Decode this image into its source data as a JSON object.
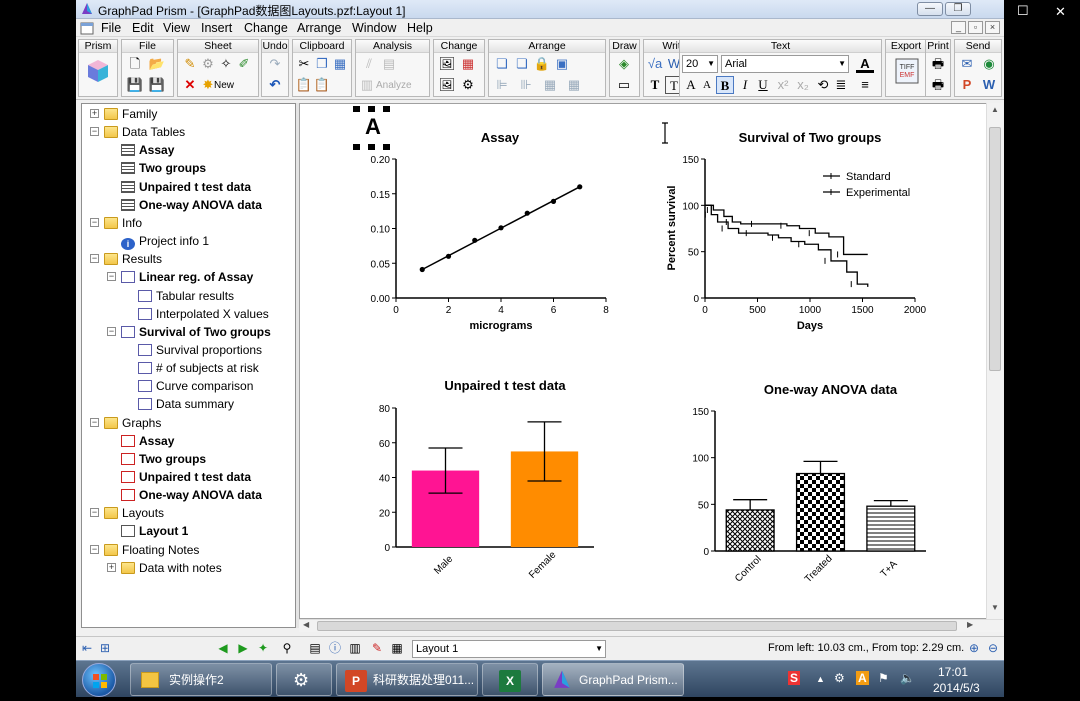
{
  "window": {
    "title": "GraphPad Prism - [GraphPad数据图Layouts.pzf:Layout 1]",
    "minimize_glyph": "—",
    "maximize_glyph": "❐"
  },
  "outer_window_buttons": {
    "minimize": "—",
    "maximize": "☐",
    "close": "✕"
  },
  "menu": [
    "File",
    "Edit",
    "View",
    "Insert",
    "Change",
    "Arrange",
    "Window",
    "Help"
  ],
  "toolbar": {
    "groups": [
      "Prism",
      "File",
      "Sheet",
      "Undo",
      "Clipboard",
      "Analysis",
      "Change",
      "Arrange",
      "Draw",
      "Write",
      "Text",
      "Export",
      "Print",
      "Send"
    ],
    "sheet_new_label": "New",
    "analyze_label": "Analyze",
    "font_size": "20",
    "font_name": "Arial"
  },
  "navigator": [
    {
      "label": "Family",
      "kind": "folder",
      "level": 0,
      "bold": false
    },
    {
      "label": "Data Tables",
      "kind": "folder",
      "level": 0,
      "bold": false
    },
    {
      "label": "Assay",
      "kind": "sheet",
      "level": 1,
      "bold": true
    },
    {
      "label": "Two groups",
      "kind": "sheet",
      "level": 1,
      "bold": true
    },
    {
      "label": "Unpaired t test data",
      "kind": "sheet",
      "level": 1,
      "bold": true
    },
    {
      "label": "One-way ANOVA data",
      "kind": "sheet",
      "level": 1,
      "bold": true
    },
    {
      "label": "Info",
      "kind": "folder",
      "level": 0,
      "bold": false
    },
    {
      "label": "Project info 1",
      "kind": "info",
      "level": 1,
      "bold": false
    },
    {
      "label": "Results",
      "kind": "folder",
      "level": 0,
      "bold": false
    },
    {
      "label": "Linear reg. of Assay",
      "kind": "result",
      "level": 1,
      "bold": true
    },
    {
      "label": "Tabular results",
      "kind": "result",
      "level": 2,
      "bold": false
    },
    {
      "label": "Interpolated X values",
      "kind": "result",
      "level": 2,
      "bold": false
    },
    {
      "label": "Survival of Two groups",
      "kind": "result",
      "level": 1,
      "bold": true
    },
    {
      "label": "Survival proportions",
      "kind": "result",
      "level": 2,
      "bold": false
    },
    {
      "label": "# of subjects at risk",
      "kind": "result",
      "level": 2,
      "bold": false
    },
    {
      "label": "Curve comparison",
      "kind": "result",
      "level": 2,
      "bold": false
    },
    {
      "label": "Data summary",
      "kind": "result",
      "level": 2,
      "bold": false
    },
    {
      "label": "Graphs",
      "kind": "folder",
      "level": 0,
      "bold": false
    },
    {
      "label": "Assay",
      "kind": "graph",
      "level": 1,
      "bold": true
    },
    {
      "label": "Two groups",
      "kind": "graph",
      "level": 1,
      "bold": true
    },
    {
      "label": "Unpaired t test data",
      "kind": "graph",
      "level": 1,
      "bold": true
    },
    {
      "label": "One-way ANOVA data",
      "kind": "graph",
      "level": 1,
      "bold": true
    },
    {
      "label": "Layouts",
      "kind": "folder",
      "level": 0,
      "bold": false
    },
    {
      "label": "Layout 1",
      "kind": "layout",
      "level": 1,
      "bold": true
    },
    {
      "label": "Floating Notes",
      "kind": "folder",
      "level": 0,
      "bold": false
    },
    {
      "label": "Data with notes",
      "kind": "folder",
      "level": 1,
      "bold": false
    }
  ],
  "layout_label": "A",
  "chart_data": [
    {
      "type": "line",
      "title": "Assay",
      "xlabel": "micrograms",
      "ylabel": "",
      "xlim": [
        0,
        8
      ],
      "ylim": [
        0,
        0.2
      ],
      "xticks": [
        "0",
        "2",
        "4",
        "6",
        "8"
      ],
      "yticks": [
        "0.00",
        "0.05",
        "0.10",
        "0.15",
        "0.20"
      ],
      "series": [
        {
          "x": [
            1,
            2,
            3,
            4,
            5,
            6,
            7
          ],
          "y": [
            0.041,
            0.06,
            0.083,
            0.101,
            0.122,
            0.139,
            0.16
          ]
        }
      ]
    },
    {
      "type": "line",
      "subtype": "survival",
      "title": "Survival of Two groups",
      "xlabel": "Days",
      "ylabel": "Percent survival",
      "xlim": [
        0,
        2000
      ],
      "ylim": [
        0,
        150
      ],
      "xticks": [
        "0",
        "500",
        "1000",
        "1500",
        "2000"
      ],
      "yticks": [
        "0",
        "50",
        "100",
        "150"
      ],
      "legend_position": "top-right",
      "series": [
        {
          "name": "Standard",
          "x": [
            0,
            80,
            180,
            260,
            340,
            500,
            620,
            780,
            900,
            1050,
            1180,
            1320,
            1550
          ],
          "y": [
            100,
            95,
            88,
            82,
            80,
            80,
            80,
            78,
            75,
            70,
            66,
            47,
            47
          ]
        },
        {
          "name": "Experimental",
          "x": [
            0,
            60,
            120,
            220,
            320,
            450,
            600,
            700,
            820,
            950,
            1080,
            1200,
            1350,
            1450,
            1550
          ],
          "y": [
            100,
            90,
            82,
            75,
            70,
            70,
            68,
            65,
            61,
            58,
            52,
            40,
            28,
            15,
            12
          ]
        }
      ]
    },
    {
      "type": "bar",
      "title": "Unpaired t test data",
      "categories": [
        "Male",
        "Female"
      ],
      "values": [
        44,
        55
      ],
      "errors_low": [
        31,
        38
      ],
      "errors_high": [
        57,
        72
      ],
      "colors": [
        "#ff1493",
        "#ff8c00"
      ],
      "ylim": [
        0,
        80
      ],
      "yticks": [
        "0",
        "20",
        "40",
        "60",
        "80"
      ]
    },
    {
      "type": "bar",
      "title": "One-way ANOVA data",
      "categories": [
        "Control",
        "Treated",
        "T+A"
      ],
      "values": [
        44,
        83,
        48
      ],
      "errors_low": [
        44,
        83,
        48
      ],
      "errors_high": [
        55,
        96,
        54
      ],
      "patterns": [
        "crosshatch",
        "checker",
        "horizontal-lines"
      ],
      "ylim": [
        0,
        150
      ],
      "yticks": [
        "0",
        "50",
        "100",
        "150"
      ]
    }
  ],
  "statusbar": {
    "sheet_select": "Layout 1",
    "position": "From left: 10.03 cm., From top: 2.29 cm."
  },
  "taskbar": {
    "items": [
      "实例操作2",
      "科研数据处理011...",
      "GraphPad Prism..."
    ],
    "time": "17:01",
    "date": "2014/5/3"
  }
}
